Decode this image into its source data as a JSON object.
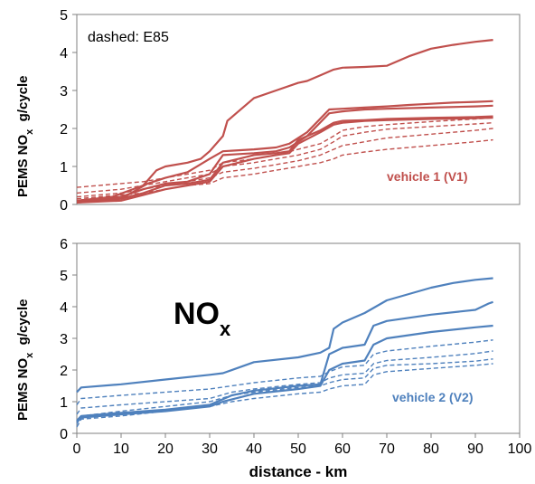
{
  "chart_data": [
    {
      "type": "line",
      "ylabel": "PEMS NOx g/cycle",
      "ylabel_main": "PEMS NO",
      "ylabel_sub": "x",
      "ylabel_unit": "g/cycle",
      "xlim": [
        0,
        100
      ],
      "ylim": [
        0,
        5
      ],
      "yticks": [
        "0",
        "1",
        "2",
        "3",
        "4",
        "5"
      ],
      "xticks": [
        "0",
        "10",
        "20",
        "30",
        "40",
        "50",
        "60",
        "70",
        "80",
        "90",
        "100"
      ],
      "grid": false,
      "annotations": {
        "note": "dashed: E85",
        "vehicle": "vehicle 1 (V1)"
      },
      "color": "#c0504d",
      "series": [
        {
          "style": "solid",
          "x": [
            0,
            8,
            15,
            18,
            20,
            25,
            28,
            30,
            33,
            34,
            36,
            40,
            45,
            50,
            52,
            55,
            57,
            58,
            60,
            65,
            70,
            75,
            80,
            85,
            90,
            94
          ],
          "y": [
            0.1,
            0.2,
            0.5,
            0.9,
            1.0,
            1.1,
            1.2,
            1.4,
            1.8,
            2.2,
            2.4,
            2.8,
            3.0,
            3.2,
            3.25,
            3.4,
            3.5,
            3.55,
            3.6,
            3.62,
            3.65,
            3.9,
            4.1,
            4.2,
            4.28,
            4.33
          ]
        },
        {
          "style": "solid",
          "x": [
            0,
            10,
            16,
            20,
            25,
            30,
            33,
            40,
            45,
            48,
            52,
            57,
            60,
            65,
            70,
            75,
            80,
            85,
            90,
            94
          ],
          "y": [
            0.05,
            0.15,
            0.55,
            0.7,
            0.85,
            1.2,
            1.4,
            1.45,
            1.5,
            1.6,
            1.9,
            2.5,
            2.52,
            2.55,
            2.58,
            2.62,
            2.65,
            2.68,
            2.7,
            2.72
          ]
        },
        {
          "style": "solid",
          "x": [
            0,
            10,
            15,
            20,
            25,
            30,
            33,
            40,
            45,
            48,
            52,
            57,
            60,
            65,
            70,
            80,
            90,
            94
          ],
          "y": [
            0.1,
            0.2,
            0.4,
            0.55,
            0.6,
            0.8,
            1.3,
            1.35,
            1.4,
            1.5,
            1.8,
            2.4,
            2.45,
            2.5,
            2.52,
            2.55,
            2.58,
            2.6
          ]
        },
        {
          "style": "solid",
          "x": [
            0,
            10,
            15,
            20,
            25,
            30,
            33,
            40,
            45,
            48,
            50,
            55,
            58,
            60,
            65,
            70,
            80,
            90,
            94
          ],
          "y": [
            0.1,
            0.15,
            0.3,
            0.5,
            0.55,
            0.65,
            1.1,
            1.3,
            1.35,
            1.4,
            1.7,
            1.95,
            2.15,
            2.2,
            2.22,
            2.25,
            2.28,
            2.3,
            2.32
          ]
        },
        {
          "style": "solid",
          "x": [
            0,
            10,
            15,
            20,
            25,
            30,
            33,
            40,
            45,
            48,
            50,
            55,
            58,
            60,
            65,
            70,
            80,
            90,
            94
          ],
          "y": [
            0.05,
            0.1,
            0.25,
            0.4,
            0.5,
            0.6,
            1.0,
            1.2,
            1.3,
            1.35,
            1.6,
            1.9,
            2.1,
            2.15,
            2.2,
            2.22,
            2.25,
            2.27,
            2.28
          ]
        },
        {
          "style": "dashed",
          "x": [
            0,
            10,
            15,
            20,
            25,
            30,
            33,
            40,
            45,
            50,
            55,
            58,
            60,
            65,
            70,
            80,
            90,
            94
          ],
          "y": [
            0.45,
            0.55,
            0.6,
            0.7,
            0.8,
            0.9,
            1.1,
            1.2,
            1.3,
            1.45,
            1.6,
            1.8,
            1.95,
            2.05,
            2.1,
            2.18,
            2.25,
            2.28
          ]
        },
        {
          "style": "dashed",
          "x": [
            0,
            10,
            15,
            20,
            25,
            30,
            33,
            40,
            45,
            50,
            55,
            58,
            60,
            65,
            70,
            80,
            90,
            94
          ],
          "y": [
            0.3,
            0.4,
            0.5,
            0.6,
            0.7,
            0.8,
            1.0,
            1.1,
            1.2,
            1.3,
            1.45,
            1.65,
            1.8,
            1.9,
            1.98,
            2.05,
            2.12,
            2.15
          ]
        },
        {
          "style": "dashed",
          "x": [
            0,
            10,
            15,
            20,
            25,
            30,
            33,
            40,
            45,
            50,
            55,
            58,
            60,
            65,
            70,
            80,
            90,
            94
          ],
          "y": [
            0.2,
            0.3,
            0.4,
            0.5,
            0.6,
            0.7,
            0.85,
            0.95,
            1.05,
            1.15,
            1.3,
            1.45,
            1.55,
            1.65,
            1.75,
            1.85,
            1.95,
            2.0
          ]
        },
        {
          "style": "dashed",
          "x": [
            0,
            10,
            15,
            20,
            25,
            30,
            33,
            40,
            45,
            50,
            55,
            58,
            60,
            65,
            70,
            80,
            90,
            94
          ],
          "y": [
            0.15,
            0.25,
            0.3,
            0.4,
            0.5,
            0.55,
            0.7,
            0.8,
            0.9,
            1.0,
            1.1,
            1.2,
            1.3,
            1.38,
            1.45,
            1.55,
            1.65,
            1.7
          ]
        }
      ]
    },
    {
      "type": "line",
      "ylabel": "PEMS NOx g/cycle",
      "ylabel_main": "PEMS NO",
      "ylabel_sub": "x",
      "ylabel_unit": "g/cycle",
      "xlabel": "distance - km",
      "xlim": [
        0,
        100
      ],
      "ylim": [
        0,
        6
      ],
      "yticks": [
        "0",
        "1",
        "2",
        "3",
        "4",
        "5",
        "6"
      ],
      "xticks": [
        "0",
        "10",
        "20",
        "30",
        "40",
        "50",
        "60",
        "70",
        "80",
        "90",
        "100"
      ],
      "grid": false,
      "annotations": {
        "title_main": "NO",
        "title_sub": "x",
        "vehicle": "vehicle 2 (V2)"
      },
      "color": "#4f81bd",
      "series": [
        {
          "style": "solid",
          "x": [
            0,
            1,
            10,
            20,
            30,
            33,
            40,
            50,
            55,
            57,
            58,
            60,
            65,
            70,
            75,
            80,
            85,
            90,
            94
          ],
          "y": [
            1.3,
            1.45,
            1.55,
            1.7,
            1.85,
            1.9,
            2.25,
            2.4,
            2.55,
            2.7,
            3.3,
            3.5,
            3.8,
            4.2,
            4.4,
            4.6,
            4.75,
            4.85,
            4.9
          ]
        },
        {
          "style": "solid",
          "x": [
            0,
            1,
            10,
            20,
            30,
            35,
            40,
            50,
            55,
            57,
            60,
            65,
            67,
            70,
            80,
            90,
            93,
            94
          ],
          "y": [
            0.4,
            0.55,
            0.65,
            0.75,
            0.9,
            1.2,
            1.35,
            1.5,
            1.55,
            2.5,
            2.7,
            2.8,
            3.4,
            3.55,
            3.75,
            3.9,
            4.1,
            4.15
          ]
        },
        {
          "style": "solid",
          "x": [
            0,
            1,
            10,
            20,
            30,
            33,
            40,
            50,
            55,
            57,
            60,
            65,
            67,
            70,
            80,
            90,
            94
          ],
          "y": [
            0.35,
            0.5,
            0.6,
            0.7,
            0.85,
            1.0,
            1.25,
            1.4,
            1.5,
            2.0,
            2.2,
            2.3,
            2.8,
            3.0,
            3.2,
            3.35,
            3.4
          ]
        },
        {
          "style": "dashed",
          "x": [
            0,
            1,
            10,
            20,
            30,
            35,
            40,
            50,
            55,
            57,
            60,
            65,
            67,
            70,
            80,
            90,
            94
          ],
          "y": [
            0.9,
            1.1,
            1.2,
            1.3,
            1.4,
            1.5,
            1.6,
            1.75,
            1.8,
            1.95,
            2.1,
            2.15,
            2.5,
            2.6,
            2.75,
            2.88,
            2.95
          ]
        },
        {
          "style": "dashed",
          "x": [
            0,
            1,
            10,
            20,
            30,
            35,
            40,
            50,
            55,
            57,
            60,
            65,
            67,
            70,
            80,
            90,
            94
          ],
          "y": [
            0.6,
            0.8,
            0.9,
            1.0,
            1.1,
            1.3,
            1.4,
            1.55,
            1.6,
            1.75,
            1.85,
            1.9,
            2.2,
            2.3,
            2.4,
            2.52,
            2.6
          ]
        },
        {
          "style": "dashed",
          "x": [
            0,
            1,
            10,
            20,
            30,
            35,
            40,
            50,
            55,
            57,
            60,
            65,
            67,
            70,
            80,
            90,
            94
          ],
          "y": [
            0.3,
            0.55,
            0.7,
            0.85,
            1.0,
            1.2,
            1.3,
            1.45,
            1.5,
            1.6,
            1.7,
            1.75,
            2.05,
            2.15,
            2.2,
            2.28,
            2.35
          ]
        },
        {
          "style": "dashed",
          "x": [
            0,
            1,
            10,
            20,
            30,
            35,
            40,
            50,
            55,
            57,
            60,
            65,
            67,
            70,
            80,
            90,
            94
          ],
          "y": [
            0.2,
            0.45,
            0.55,
            0.7,
            0.85,
            1.0,
            1.1,
            1.25,
            1.3,
            1.4,
            1.5,
            1.55,
            1.85,
            1.95,
            2.05,
            2.15,
            2.2
          ]
        }
      ]
    }
  ]
}
